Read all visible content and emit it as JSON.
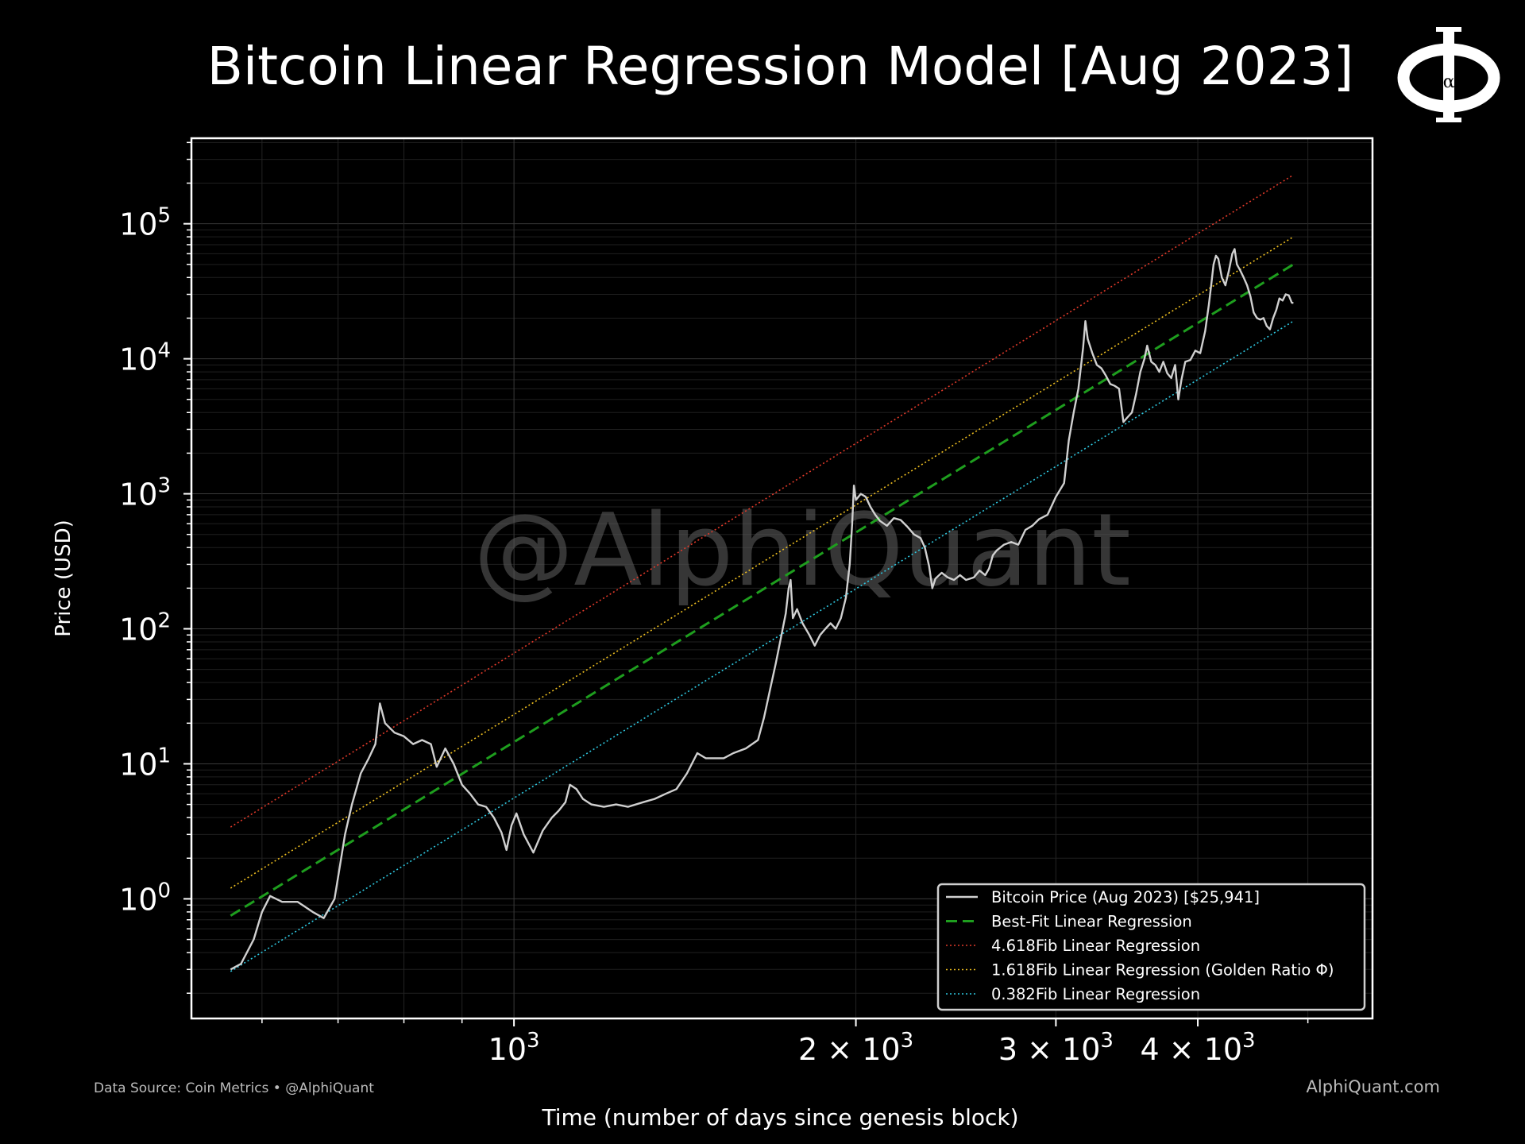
{
  "title": "Bitcoin Linear Regression Model [Aug 2023]",
  "logo": {
    "icon": "phi-alpha-logo-icon",
    "glyph": "Φ",
    "subscript": "α"
  },
  "footer": {
    "source": "Data Source: Coin Metrics • @AlphiQuant",
    "site": "AlphiQuant.com"
  },
  "chart_data": {
    "type": "line",
    "title": "Bitcoin Linear Regression Model [Aug 2023]",
    "xlabel": "Time (number of days since genesis block)",
    "ylabel": "Price (USD)",
    "xscale": "log",
    "yscale": "log",
    "xlim": [
      520,
      5700
    ],
    "ylim": [
      0.13,
      430000
    ],
    "grid": true,
    "watermark": "@AlphiQuant",
    "legend_position": "bottom-right",
    "x_ticks": [
      {
        "value": 1000,
        "base": "10",
        "exp": "3"
      },
      {
        "value": 2000,
        "base": "2 × 10",
        "exp": "3"
      },
      {
        "value": 3000,
        "base": "3 × 10",
        "exp": "3"
      },
      {
        "value": 4000,
        "base": "4 × 10",
        "exp": "3"
      }
    ],
    "y_ticks": [
      {
        "value": 1,
        "base": "10",
        "exp": "0"
      },
      {
        "value": 10,
        "base": "10",
        "exp": "1"
      },
      {
        "value": 100,
        "base": "10",
        "exp": "2"
      },
      {
        "value": 1000,
        "base": "10",
        "exp": "3"
      },
      {
        "value": 10000,
        "base": "10",
        "exp": "4"
      },
      {
        "value": 100000,
        "base": "10",
        "exp": "5"
      }
    ],
    "series": [
      {
        "name": "Bitcoin Price (Aug 2023) [$25,941]",
        "color": "#d0d0d0",
        "style": "solid",
        "points": [
          [
            563,
            0.3
          ],
          [
            575,
            0.33
          ],
          [
            590,
            0.5
          ],
          [
            600,
            0.8
          ],
          [
            610,
            1.05
          ],
          [
            625,
            0.95
          ],
          [
            645,
            0.95
          ],
          [
            665,
            0.8
          ],
          [
            680,
            0.72
          ],
          [
            695,
            1.0
          ],
          [
            710,
            3.0
          ],
          [
            720,
            5.0
          ],
          [
            733,
            8.5
          ],
          [
            745,
            11
          ],
          [
            755,
            14
          ],
          [
            762,
            28
          ],
          [
            770,
            20
          ],
          [
            785,
            17
          ],
          [
            800,
            16
          ],
          [
            815,
            14
          ],
          [
            830,
            15
          ],
          [
            845,
            14
          ],
          [
            855,
            9.5
          ],
          [
            870,
            13
          ],
          [
            885,
            10
          ],
          [
            900,
            7
          ],
          [
            915,
            6
          ],
          [
            930,
            5
          ],
          [
            945,
            4.8
          ],
          [
            960,
            4.0
          ],
          [
            975,
            3.1
          ],
          [
            985,
            2.3
          ],
          [
            995,
            3.5
          ],
          [
            1005,
            4.3
          ],
          [
            1020,
            3.0
          ],
          [
            1040,
            2.2
          ],
          [
            1060,
            3.2
          ],
          [
            1080,
            4.0
          ],
          [
            1095,
            4.5
          ],
          [
            1110,
            5.2
          ],
          [
            1120,
            7.0
          ],
          [
            1135,
            6.5
          ],
          [
            1150,
            5.5
          ],
          [
            1170,
            5.0
          ],
          [
            1200,
            4.8
          ],
          [
            1230,
            5.0
          ],
          [
            1260,
            4.8
          ],
          [
            1300,
            5.2
          ],
          [
            1330,
            5.5
          ],
          [
            1360,
            6.0
          ],
          [
            1390,
            6.5
          ],
          [
            1420,
            8.5
          ],
          [
            1450,
            12
          ],
          [
            1475,
            11
          ],
          [
            1500,
            11
          ],
          [
            1530,
            11
          ],
          [
            1560,
            12
          ],
          [
            1600,
            13
          ],
          [
            1640,
            15
          ],
          [
            1660,
            22
          ],
          [
            1680,
            35
          ],
          [
            1700,
            55
          ],
          [
            1720,
            90
          ],
          [
            1735,
            130
          ],
          [
            1745,
            200
          ],
          [
            1752,
            230
          ],
          [
            1760,
            120
          ],
          [
            1775,
            140
          ],
          [
            1795,
            110
          ],
          [
            1820,
            90
          ],
          [
            1840,
            75
          ],
          [
            1860,
            90
          ],
          [
            1880,
            100
          ],
          [
            1900,
            110
          ],
          [
            1920,
            100
          ],
          [
            1940,
            120
          ],
          [
            1960,
            170
          ],
          [
            1975,
            300
          ],
          [
            1985,
            600
          ],
          [
            1992,
            1150
          ],
          [
            2000,
            900
          ],
          [
            2020,
            1000
          ],
          [
            2040,
            950
          ],
          [
            2060,
            800
          ],
          [
            2080,
            700
          ],
          [
            2100,
            630
          ],
          [
            2130,
            580
          ],
          [
            2160,
            660
          ],
          [
            2190,
            640
          ],
          [
            2220,
            570
          ],
          [
            2250,
            500
          ],
          [
            2280,
            470
          ],
          [
            2300,
            400
          ],
          [
            2320,
            290
          ],
          [
            2335,
            200
          ],
          [
            2350,
            235
          ],
          [
            2380,
            260
          ],
          [
            2410,
            240
          ],
          [
            2440,
            230
          ],
          [
            2470,
            250
          ],
          [
            2500,
            230
          ],
          [
            2540,
            240
          ],
          [
            2570,
            270
          ],
          [
            2600,
            250
          ],
          [
            2620,
            280
          ],
          [
            2640,
            350
          ],
          [
            2660,
            380
          ],
          [
            2700,
            420
          ],
          [
            2740,
            440
          ],
          [
            2780,
            420
          ],
          [
            2820,
            540
          ],
          [
            2860,
            580
          ],
          [
            2900,
            650
          ],
          [
            2950,
            700
          ],
          [
            3000,
            950
          ],
          [
            3050,
            1200
          ],
          [
            3080,
            2500
          ],
          [
            3110,
            4000
          ],
          [
            3140,
            6000
          ],
          [
            3170,
            12000
          ],
          [
            3185,
            19000
          ],
          [
            3200,
            14000
          ],
          [
            3230,
            11000
          ],
          [
            3260,
            9000
          ],
          [
            3290,
            8500
          ],
          [
            3320,
            7500
          ],
          [
            3350,
            6500
          ],
          [
            3380,
            6300
          ],
          [
            3410,
            6000
          ],
          [
            3440,
            3400
          ],
          [
            3470,
            3700
          ],
          [
            3500,
            4000
          ],
          [
            3530,
            5500
          ],
          [
            3560,
            8000
          ],
          [
            3590,
            10000
          ],
          [
            3610,
            12500
          ],
          [
            3640,
            9500
          ],
          [
            3670,
            9000
          ],
          [
            3700,
            8000
          ],
          [
            3730,
            9500
          ],
          [
            3760,
            7800
          ],
          [
            3790,
            7200
          ],
          [
            3820,
            9000
          ],
          [
            3845,
            5000
          ],
          [
            3870,
            7000
          ],
          [
            3900,
            9500
          ],
          [
            3940,
            9800
          ],
          [
            3980,
            11500
          ],
          [
            4020,
            11000
          ],
          [
            4060,
            16000
          ],
          [
            4090,
            25000
          ],
          [
            4110,
            35000
          ],
          [
            4130,
            50000
          ],
          [
            4150,
            58000
          ],
          [
            4170,
            55000
          ],
          [
            4200,
            40000
          ],
          [
            4230,
            35000
          ],
          [
            4260,
            45000
          ],
          [
            4290,
            60000
          ],
          [
            4310,
            65000
          ],
          [
            4330,
            50000
          ],
          [
            4360,
            45000
          ],
          [
            4390,
            40000
          ],
          [
            4420,
            35000
          ],
          [
            4450,
            29000
          ],
          [
            4480,
            22000
          ],
          [
            4510,
            20000
          ],
          [
            4540,
            19500
          ],
          [
            4570,
            20000
          ],
          [
            4600,
            17500
          ],
          [
            4630,
            16500
          ],
          [
            4660,
            20000
          ],
          [
            4690,
            23000
          ],
          [
            4720,
            28000
          ],
          [
            4750,
            27000
          ],
          [
            4780,
            30000
          ],
          [
            4810,
            29500
          ],
          [
            4840,
            26000
          ],
          [
            4855,
            25941
          ]
        ]
      },
      {
        "name": "Best-Fit Linear Regression",
        "color": "#1e9e1e",
        "style": "dashed",
        "points": [
          [
            563,
            0.75
          ],
          [
            4855,
            50000
          ]
        ]
      },
      {
        "name": "4.618Fib Linear Regression",
        "color": "#e23a2a",
        "style": "dotted",
        "points": [
          [
            563,
            3.4
          ],
          [
            4855,
            230000
          ]
        ]
      },
      {
        "name": "1.618Fib Linear Regression (Golden Ratio Φ)",
        "color": "#f0c020",
        "style": "dotted",
        "points": [
          [
            563,
            1.2
          ],
          [
            4855,
            80000
          ]
        ]
      },
      {
        "name": "0.382Fib Linear Regression",
        "color": "#2ec8e0",
        "style": "dotted",
        "points": [
          [
            563,
            0.29
          ],
          [
            4855,
            19000
          ]
        ]
      }
    ]
  }
}
